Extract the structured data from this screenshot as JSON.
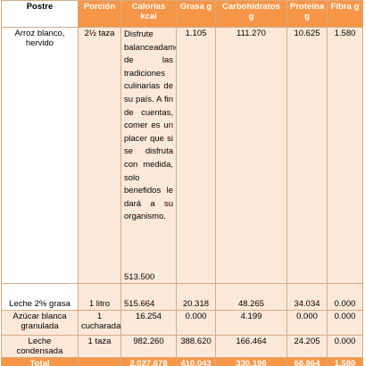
{
  "header": [
    "Postre",
    "Porción",
    "Calorías kcal",
    "Grasa g",
    "Carbohidratos g",
    "Proteína g",
    "Fibra g"
  ],
  "rows": [
    {
      "cells": [
        "Arroz blanco, hervido",
        "2½ taza",
        "513.500",
        "1.105",
        "111.270",
        "10.625",
        "1.580"
      ],
      "note": "Disfrute balanceadamente de las tradiciones culinarias de su país. A fin de cuentas, comer es un placer que si se disfruta con medida, solo benefidos le dará a su organismo."
    },
    {
      "cells": [
        "Leche 2% grasa",
        "1 litro",
        "515.664",
        "20.318",
        "48.265",
        "34.034",
        "0.000"
      ]
    },
    {
      "cells": [
        "Azúcar blanca granulada",
        "1 cucharada",
        "16.254",
        "0.000",
        "4.199",
        "0.000",
        "0.000"
      ]
    },
    {
      "cells": [
        "Leche condensada",
        "1 taza",
        "982.260",
        "388.620",
        "166.464",
        "24.205",
        "0.000"
      ]
    }
  ],
  "total": {
    "label": "Total",
    "values": [
      "2,027.678",
      "410.043",
      "330.198",
      "68.864",
      "1.580"
    ]
  }
}
